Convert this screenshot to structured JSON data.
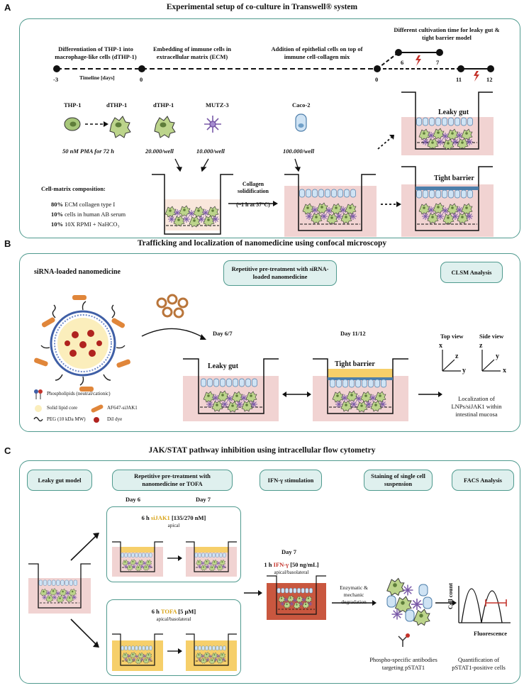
{
  "sections": [
    {
      "letter": "A",
      "title": "Experimental setup of co-culture in Transwell® system"
    },
    {
      "letter": "B",
      "title": "Trafficking and localization of nanomedicine using confocal microscopy"
    },
    {
      "letter": "C",
      "title": "JAK/STAT pathway inhibition using intracellular flow cytometry"
    }
  ],
  "a": {
    "steps": [
      "Differentiation of THP-1 into macrophage-like cells (dTHP-1)",
      "Embedding of immune cells in extracellular matrix (ECM)",
      "Addition of epithelial cells on top of immune cell-collagen mix",
      "Different cultivation time for leaky gut & tight barrier model"
    ],
    "timeline_label": "Timeline [days]",
    "ticks": [
      "-3",
      "0",
      "0",
      "6",
      "7",
      "11",
      "12"
    ],
    "cells": [
      {
        "name": "THP-1"
      },
      {
        "name": "dTHP-1"
      },
      {
        "name": "dTHP-1"
      },
      {
        "name": "MUTZ-3"
      },
      {
        "name": "Caco-2"
      }
    ],
    "conditions": [
      "50 nM PMA for 72 h",
      "20.000/well",
      "10.000/well",
      "100.000/well"
    ],
    "matrix_title": "Cell-matrix composition:",
    "matrix_items": [
      {
        "pct": "80%",
        "text": " ECM collagen type I"
      },
      {
        "pct": "10%",
        "text": " cells in human AB serum"
      },
      {
        "pct": "10%",
        "text": " 10X RPMI + NaHCO₃"
      }
    ],
    "collagen": [
      "Collagen",
      "solidification",
      "(~1 h at 37°C)"
    ],
    "leaky": "Leaky gut",
    "tight": "Tight barrier"
  },
  "b": {
    "np_title": "siRNA-loaded nanomedicine",
    "pretreat": "Repetitive pre-treatment with siRNA-loaded nanomedicine",
    "clsm": "CLSM Analysis",
    "day1": "Day 6/7",
    "day2": "Day 11/12",
    "leaky": "Leaky gut",
    "tight": "Tight barrier",
    "top_view": "Top view",
    "side_view": "Side view",
    "axes_top": [
      "x",
      "z",
      "y"
    ],
    "axes_side": [
      "z",
      "y",
      "x"
    ],
    "localization": "Localization of LNPs/siJAK1 within intestinal mucosa",
    "legend": [
      "Phospholipids (neutral/cationic)",
      "Solid lipid core",
      "AF647-siJAK1",
      "PEG (10 kDa MW)",
      "DiI dye"
    ]
  },
  "c": {
    "leaky_model": "Leaky gut model",
    "pretreat": "Repetitive pre-treatment with nanomedicine or TOFA",
    "ifn": "IFN-γ stimulation",
    "staining": "Staining of single cell suspension",
    "facs": "FACS Analysis",
    "day6": "Day 6",
    "day7": "Day 7",
    "sijak": {
      "pre": "6 h ",
      "drug": "siJAK1",
      "post": " [135/270 nM]",
      "sub": "apical"
    },
    "tofa": {
      "pre": "6 h ",
      "drug": "TOFA",
      "post": " [5 µM]",
      "sub": "apical/basolateral"
    },
    "ifn_day": "Day 7",
    "ifn_cond": {
      "pre": "1 h ",
      "drug": "IFN-γ",
      "post": " [50 ng/mL]",
      "sub": "apical/basolateral"
    },
    "degradation": "Enzymatic & mechanic degradation",
    "antibodies": "Phospho-specific antibodies targeting pSTAT1",
    "quant": "Quantification of pSTAT1-positive cells",
    "y_axis": "Cell count",
    "x_axis": "Fluorescence"
  },
  "colors": {
    "panel": "#4f9a8e",
    "box": "#dff0ee",
    "pink": "#f1d3d2",
    "yellow": "#f6cf6a",
    "red_medium": "#c9573f",
    "gold": "#d9a419",
    "red": "#c4332b"
  }
}
